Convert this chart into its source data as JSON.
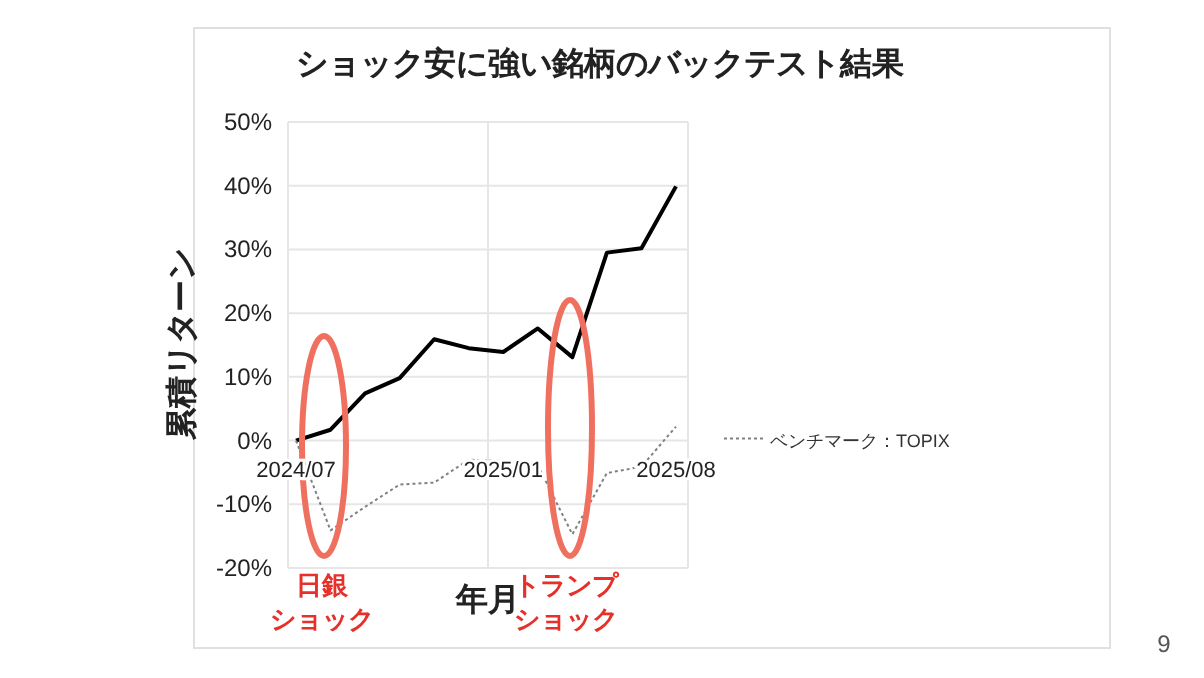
{
  "chart_data": {
    "type": "line",
    "title": "ショック安に強い銘柄のバックテスト結果",
    "xlabel": "年月",
    "ylabel": "累積リターン",
    "categories": [
      "2024/07",
      null,
      null,
      null,
      null,
      null,
      "2025/01",
      null,
      null,
      null,
      null,
      "2025/08"
    ],
    "series": [
      {
        "color": "#000000",
        "line_style": "solid",
        "values": [
          0,
          1.7,
          7.4,
          9.8,
          15.9,
          14.5,
          13.9,
          17.6,
          13.1,
          29.5,
          30.2,
          39.9
        ]
      },
      {
        "name": "ベンチマーク：TOPIX",
        "color": "#808080",
        "line_style": "dotted",
        "values": [
          0,
          -14.1,
          -10.4,
          -6.9,
          -6.6,
          -3.0,
          -3.2,
          -3.9,
          -14.7,
          -5.1,
          -4.1,
          2.2
        ]
      }
    ],
    "ylim": [
      -20,
      50
    ],
    "yticks": [
      {
        "value": -20,
        "label": "-20%"
      },
      {
        "value": -10,
        "label": "-10%"
      },
      {
        "value": 0,
        "label": "0%"
      },
      {
        "value": 10,
        "label": "10%"
      },
      {
        "value": 20,
        "label": "20%"
      },
      {
        "value": 30,
        "label": "30%"
      },
      {
        "value": 40,
        "label": "40%"
      },
      {
        "value": 50,
        "label": "50%"
      }
    ],
    "grid": true,
    "legend": "right",
    "marker": "none",
    "annotations": [
      "日銀",
      "ショック",
      "トランプ",
      "ショック",
      "9"
    ]
  }
}
